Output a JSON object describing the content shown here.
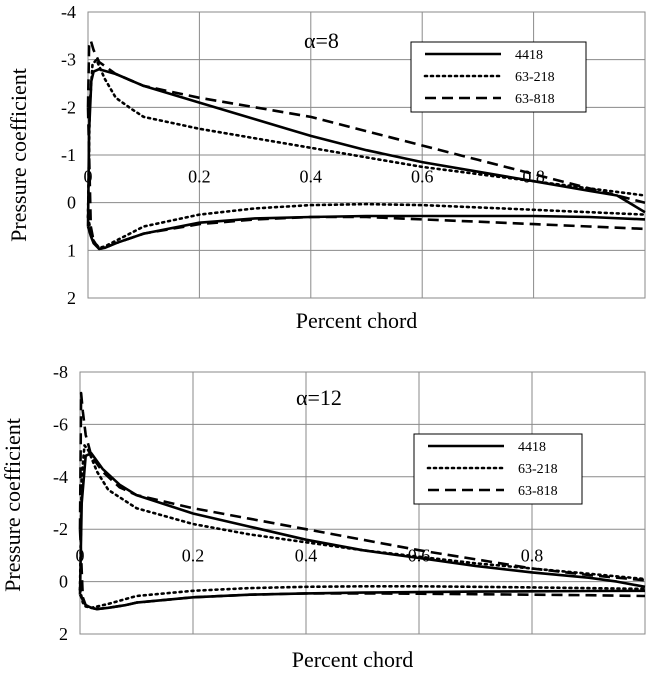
{
  "chart_data": [
    {
      "type": "line",
      "annotation": "α=8",
      "xlabel": "Percent chord",
      "ylabel": "Pressure coefficient",
      "xlim": [
        0,
        1
      ],
      "ylim": [
        2,
        -4
      ],
      "x_ticks": [
        "0",
        "0.2",
        "0.4",
        "0.6",
        "0.8"
      ],
      "y_ticks": [
        "-4",
        "-3",
        "-2",
        "-1",
        "0",
        "1",
        "2"
      ],
      "grid": true,
      "legend_position": "top-right",
      "series": [
        {
          "name": "4418",
          "style": "solid",
          "upper": {
            "x": [
              0,
              0.002,
              0.006,
              0.01,
              0.02,
              0.05,
              0.1,
              0.2,
              0.3,
              0.4,
              0.5,
              0.6,
              0.7,
              0.8,
              0.9,
              0.95,
              1.0
            ],
            "y": [
              0.5,
              -1.5,
              -2.55,
              -2.75,
              -2.8,
              -2.7,
              -2.45,
              -2.1,
              -1.75,
              -1.4,
              -1.1,
              -0.85,
              -0.65,
              -0.45,
              -0.25,
              -0.15,
              0.2
            ]
          },
          "lower": {
            "x": [
              0,
              0.005,
              0.01,
              0.02,
              0.03,
              0.05,
              0.1,
              0.2,
              0.3,
              0.4,
              0.5,
              0.6,
              0.7,
              0.8,
              0.9,
              1.0
            ],
            "y": [
              0.5,
              0.7,
              0.85,
              0.97,
              0.95,
              0.85,
              0.65,
              0.42,
              0.33,
              0.3,
              0.28,
              0.28,
              0.28,
              0.28,
              0.3,
              0.35
            ]
          }
        },
        {
          "name": "63-218",
          "style": "dotted",
          "upper": {
            "x": [
              0,
              0.003,
              0.008,
              0.015,
              0.03,
              0.05,
              0.08,
              0.1,
              0.2,
              0.3,
              0.4,
              0.5,
              0.6,
              0.7,
              0.8,
              0.9,
              1.0
            ],
            "y": [
              0.3,
              -2.0,
              -2.9,
              -3.0,
              -2.6,
              -2.2,
              -1.95,
              -1.8,
              -1.55,
              -1.35,
              -1.15,
              -0.95,
              -0.75,
              -0.6,
              -0.45,
              -0.3,
              -0.15
            ]
          },
          "lower": {
            "x": [
              0,
              0.005,
              0.01,
              0.02,
              0.03,
              0.05,
              0.1,
              0.2,
              0.3,
              0.4,
              0.5,
              0.6,
              0.7,
              0.8,
              0.9,
              1.0
            ],
            "y": [
              0.3,
              0.6,
              0.8,
              0.95,
              0.92,
              0.8,
              0.5,
              0.25,
              0.12,
              0.05,
              0.03,
              0.05,
              0.1,
              0.15,
              0.2,
              0.25
            ]
          }
        },
        {
          "name": "63-818",
          "style": "dashed",
          "upper": {
            "x": [
              0,
              0.002,
              0.005,
              0.01,
              0.02,
              0.05,
              0.1,
              0.2,
              0.3,
              0.4,
              0.5,
              0.6,
              0.7,
              0.8,
              0.9,
              1.0
            ],
            "y": [
              -2.0,
              -3.3,
              -3.4,
              -3.2,
              -2.95,
              -2.7,
              -2.45,
              -2.2,
              -2.0,
              -1.8,
              -1.5,
              -1.2,
              -0.9,
              -0.6,
              -0.3,
              0.0
            ]
          },
          "lower": {
            "x": [
              0,
              0.005,
              0.01,
              0.02,
              0.03,
              0.05,
              0.1,
              0.2,
              0.3,
              0.4,
              0.5,
              0.6,
              0.7,
              0.8,
              0.9,
              1.0
            ],
            "y": [
              -2.0,
              0.5,
              0.8,
              0.97,
              0.95,
              0.85,
              0.65,
              0.45,
              0.35,
              0.3,
              0.3,
              0.35,
              0.4,
              0.45,
              0.5,
              0.55
            ]
          }
        }
      ]
    },
    {
      "type": "line",
      "annotation": "α=12",
      "xlabel": "Percent chord",
      "ylabel": "Pressure coefficient",
      "xlim": [
        0,
        1
      ],
      "ylim": [
        2,
        -8
      ],
      "x_ticks": [
        "0",
        "0.2",
        "0.4",
        "0.6",
        "0.8"
      ],
      "y_ticks": [
        "-8",
        "-6",
        "-4",
        "-2",
        "0",
        "2"
      ],
      "grid": true,
      "legend_position": "right",
      "series": [
        {
          "name": "4418",
          "style": "solid",
          "upper": {
            "x": [
              0,
              0.003,
              0.01,
              0.02,
              0.04,
              0.07,
              0.1,
              0.2,
              0.3,
              0.4,
              0.5,
              0.6,
              0.7,
              0.8,
              0.9,
              0.95,
              1.0
            ],
            "y": [
              0.5,
              -3.0,
              -4.8,
              -4.9,
              -4.3,
              -3.7,
              -3.3,
              -2.6,
              -2.1,
              -1.6,
              -1.2,
              -0.9,
              -0.6,
              -0.35,
              -0.15,
              0.0,
              0.2
            ]
          },
          "lower": {
            "x": [
              0,
              0.005,
              0.01,
              0.02,
              0.03,
              0.05,
              0.08,
              0.1,
              0.2,
              0.3,
              0.4,
              0.5,
              0.6,
              0.7,
              0.8,
              0.9,
              1.0
            ],
            "y": [
              0.5,
              0.7,
              0.9,
              1.0,
              1.05,
              1.0,
              0.9,
              0.8,
              0.6,
              0.5,
              0.45,
              0.42,
              0.4,
              0.38,
              0.37,
              0.36,
              0.35
            ]
          }
        },
        {
          "name": "63-218",
          "style": "dotted",
          "upper": {
            "x": [
              0,
              0.003,
              0.008,
              0.015,
              0.03,
              0.05,
              0.1,
              0.2,
              0.3,
              0.4,
              0.5,
              0.6,
              0.7,
              0.8,
              0.9,
              1.0
            ],
            "y": [
              0.3,
              -4.0,
              -5.2,
              -5.0,
              -4.2,
              -3.5,
              -2.8,
              -2.2,
              -1.8,
              -1.5,
              -1.2,
              -0.95,
              -0.7,
              -0.5,
              -0.3,
              -0.1
            ]
          },
          "lower": {
            "x": [
              0,
              0.005,
              0.01,
              0.02,
              0.03,
              0.05,
              0.1,
              0.2,
              0.3,
              0.4,
              0.5,
              0.6,
              0.7,
              0.8,
              0.9,
              1.0
            ],
            "y": [
              0.3,
              0.8,
              0.95,
              1.0,
              0.95,
              0.85,
              0.55,
              0.35,
              0.25,
              0.2,
              0.18,
              0.18,
              0.2,
              0.22,
              0.25,
              0.28
            ]
          }
        },
        {
          "name": "63-818",
          "style": "dashed",
          "upper": {
            "x": [
              0,
              0.002,
              0.005,
              0.01,
              0.02,
              0.04,
              0.07,
              0.1,
              0.2,
              0.3,
              0.4,
              0.5,
              0.6,
              0.7,
              0.8,
              0.9,
              1.0
            ],
            "y": [
              -2.0,
              -7.2,
              -6.5,
              -5.6,
              -4.8,
              -4.2,
              -3.6,
              -3.3,
              -2.8,
              -2.4,
              -2.0,
              -1.6,
              -1.2,
              -0.85,
              -0.5,
              -0.25,
              -0.05
            ]
          },
          "lower": {
            "x": [
              0,
              0.005,
              0.01,
              0.02,
              0.03,
              0.05,
              0.08,
              0.1,
              0.2,
              0.3,
              0.4,
              0.5,
              0.6,
              0.7,
              0.8,
              0.9,
              1.0
            ],
            "y": [
              -2.0,
              0.6,
              0.9,
              1.0,
              1.05,
              1.0,
              0.9,
              0.8,
              0.6,
              0.5,
              0.45,
              0.45,
              0.46,
              0.48,
              0.5,
              0.52,
              0.55
            ]
          }
        }
      ]
    }
  ]
}
